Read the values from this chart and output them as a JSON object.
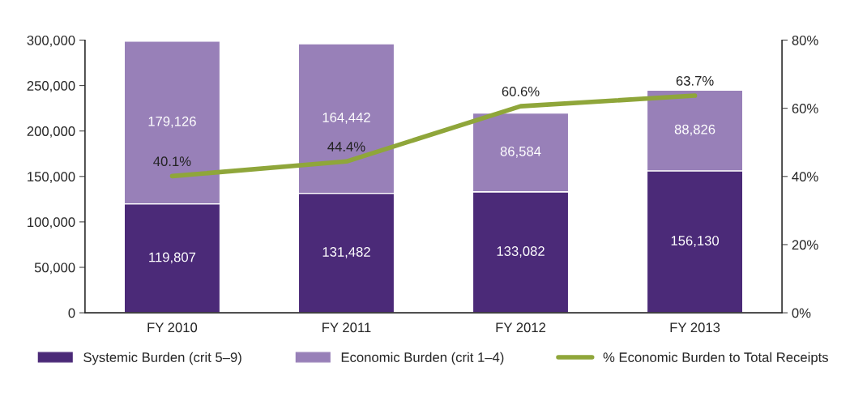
{
  "chart_data": {
    "type": "bar",
    "stacked": true,
    "categories": [
      "FY 2010",
      "FY 2011",
      "FY 2012",
      "FY 2013"
    ],
    "series": [
      {
        "name": "Systemic Burden (crit 5–9)",
        "color": "#4b2a78",
        "values": [
          119807,
          131482,
          133082,
          156130
        ],
        "value_labels": [
          "119,807",
          "131,482",
          "133,082",
          "156,130"
        ]
      },
      {
        "name": "Economic Burden (crit 1–4)",
        "color": "#9880b8",
        "values": [
          179126,
          164442,
          86584,
          88826
        ],
        "value_labels": [
          "179,126",
          "164,442",
          "86,584",
          "88,826"
        ]
      },
      {
        "name": "% Economic Burden to Total Receipts",
        "type": "line",
        "axis": "y2",
        "color": "#8fa63a",
        "values": [
          40.1,
          44.4,
          60.6,
          63.7
        ],
        "value_labels": [
          "40.1%",
          "44.4%",
          "60.6%",
          "63.7%"
        ]
      }
    ],
    "ylim": [
      0,
      300000
    ],
    "yticks": [
      0,
      {
        "value": 50000,
        "label": "50,000"
      },
      {
        "value": 100000,
        "label": "100,000"
      },
      {
        "value": 150000,
        "label": "150,000"
      },
      {
        "value": 200000,
        "label": "200,000"
      },
      {
        "value": 250000,
        "label": "250,000"
      },
      {
        "value": 300000,
        "label": "300,000"
      }
    ],
    "y2lim": [
      0,
      80
    ],
    "y2ticks": [
      {
        "value": 0,
        "label": "0%"
      },
      {
        "value": 20,
        "label": "20%"
      },
      {
        "value": 40,
        "label": "40%"
      },
      {
        "value": 60,
        "label": "60%"
      },
      {
        "value": 80,
        "label": "80%"
      }
    ],
    "grid": false,
    "legend": "bottom",
    "marker": "none",
    "line_style": "solid"
  }
}
